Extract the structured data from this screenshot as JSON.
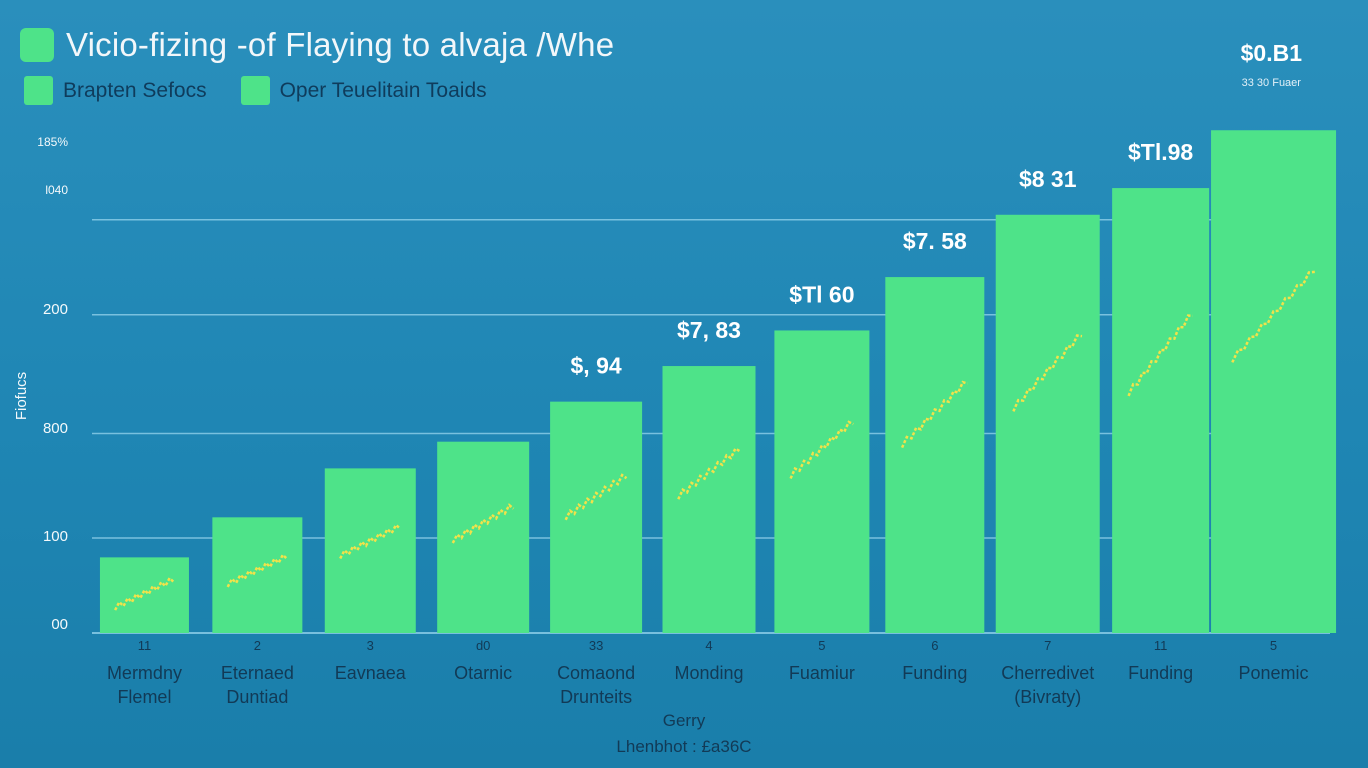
{
  "title": "Vicio-fizing -of Flaying to alvaja /Whe",
  "corner": {
    "value": "$0.B1",
    "subtitle": "33 30 Fuaer"
  },
  "colors": {
    "background": "#2186b5",
    "bar": "#4ee389",
    "sparkline": "#f2e24a",
    "grid": "#8fd0ea",
    "axis_text": "#f4f9fb",
    "label_text": "#123a56"
  },
  "footer": {
    "line1": "Gerry",
    "line2": "Lhenbhot : £a36C"
  },
  "chart_data": {
    "type": "bar",
    "legend": [
      "Brapten Sefocs",
      "Oper Teuelitain Toaids"
    ],
    "legend_position": "top-left",
    "grid": true,
    "ylabel": "Fiofucs",
    "yticks": [
      "00",
      "100",
      "800",
      "200",
      "l040",
      "185%"
    ],
    "categories": [
      {
        "num": "11",
        "label": [
          "Mermdny",
          "Flemel"
        ]
      },
      {
        "num": "2",
        "label": [
          "Eternaed",
          "Duntiad"
        ]
      },
      {
        "num": "3",
        "label": [
          "Eavnaea"
        ]
      },
      {
        "num": "d0",
        "label": [
          "Otarnic"
        ]
      },
      {
        "num": "33",
        "label": [
          "Comaond",
          "Drunteits"
        ]
      },
      {
        "num": "4",
        "label": [
          "Monding"
        ]
      },
      {
        "num": "5",
        "label": [
          "Fuamiur"
        ]
      },
      {
        "num": "6",
        "label": [
          "Funding"
        ]
      },
      {
        "num": "7",
        "label": [
          "Cherredivet",
          "(Bivraty)"
        ]
      },
      {
        "num": "11",
        "label": [
          "Funding"
        ]
      },
      {
        "num": "5",
        "label": [
          "Ponemic"
        ]
      }
    ],
    "values": [
      85,
      130,
      185,
      215,
      260,
      300,
      340,
      400,
      470,
      500,
      565
    ],
    "value_labels": [
      "",
      "",
      "",
      "",
      "$, 94",
      "$7, 83",
      "$Tl 60",
      "$7. 58",
      "$8 31",
      "$Tl.98",
      ""
    ],
    "ylim": [
      0,
      590
    ]
  }
}
